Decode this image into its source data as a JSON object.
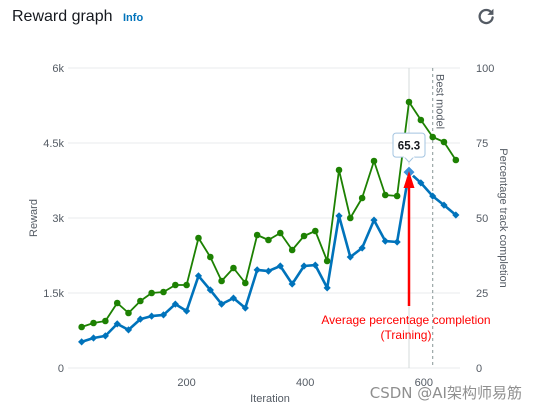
{
  "header": {
    "title": "Reward graph",
    "info_label": "Info",
    "refresh_icon": "refresh-icon"
  },
  "chart_data": {
    "type": "line",
    "xlabel": "Iteration",
    "ylabel": "Reward",
    "y2label": "Percentage track completion",
    "xlim": [
      0,
      661
    ],
    "ylim": [
      0,
      6000
    ],
    "y2lim": [
      0,
      100
    ],
    "grid": true,
    "x_ticks": [
      {
        "value": 200,
        "label": "200"
      },
      {
        "value": 400,
        "label": "400"
      },
      {
        "value": 600,
        "label": "600"
      }
    ],
    "y_ticks": [
      {
        "value": 0,
        "label": "0"
      },
      {
        "value": 1500,
        "label": "1.5k"
      },
      {
        "value": 3000,
        "label": "3k"
      },
      {
        "value": 4500,
        "label": "4.5k"
      },
      {
        "value": 6000,
        "label": "6k"
      }
    ],
    "y2_ticks": [
      {
        "value": 0,
        "label": "0"
      },
      {
        "value": 25,
        "label": "25"
      },
      {
        "value": 50,
        "label": "50"
      },
      {
        "value": 75,
        "label": "75"
      },
      {
        "value": 100,
        "label": "100"
      }
    ],
    "x": [
      23,
      43,
      63,
      83,
      102,
      122,
      141,
      161,
      181,
      200,
      220,
      240,
      259,
      279,
      299,
      319,
      338,
      358,
      378,
      398,
      417,
      437,
      457,
      476,
      496,
      516,
      535,
      555,
      575,
      595,
      615,
      634,
      654
    ],
    "series": [
      {
        "axis": "left",
        "color": "#1d8102",
        "marker": "circle",
        "values": [
          820,
          900,
          940,
          1300,
          1100,
          1340,
          1500,
          1520,
          1660,
          1660,
          2600,
          2220,
          1740,
          2000,
          1700,
          2660,
          2560,
          2700,
          2360,
          2640,
          2740,
          2140,
          3960,
          3000,
          3400,
          4140,
          3460,
          3440,
          5320,
          4960,
          4620,
          4520,
          4160
        ]
      },
      {
        "axis": "right",
        "color": "#0073bb",
        "marker": "diamond",
        "values": [
          8.7,
          10.0,
          10.7,
          14.7,
          12.7,
          16.3,
          17.3,
          17.7,
          21.3,
          19.0,
          30.7,
          26.0,
          21.3,
          23.3,
          20.0,
          32.7,
          32.3,
          34.0,
          28.0,
          34.0,
          34.3,
          26.7,
          50.7,
          37.0,
          40.0,
          49.3,
          42.3,
          42.0,
          65.3,
          61.7,
          57.3,
          54.3,
          51.0
        ]
      }
    ],
    "best_model": {
      "label": "Best model",
      "x": 615
    },
    "tooltip": {
      "x": 575,
      "value": "65.3"
    },
    "annotation": {
      "line1": "Average percentage completion",
      "line2": "(Training)",
      "color": "#ff0000"
    }
  },
  "watermark": "CSDN @AI架构师易筋"
}
